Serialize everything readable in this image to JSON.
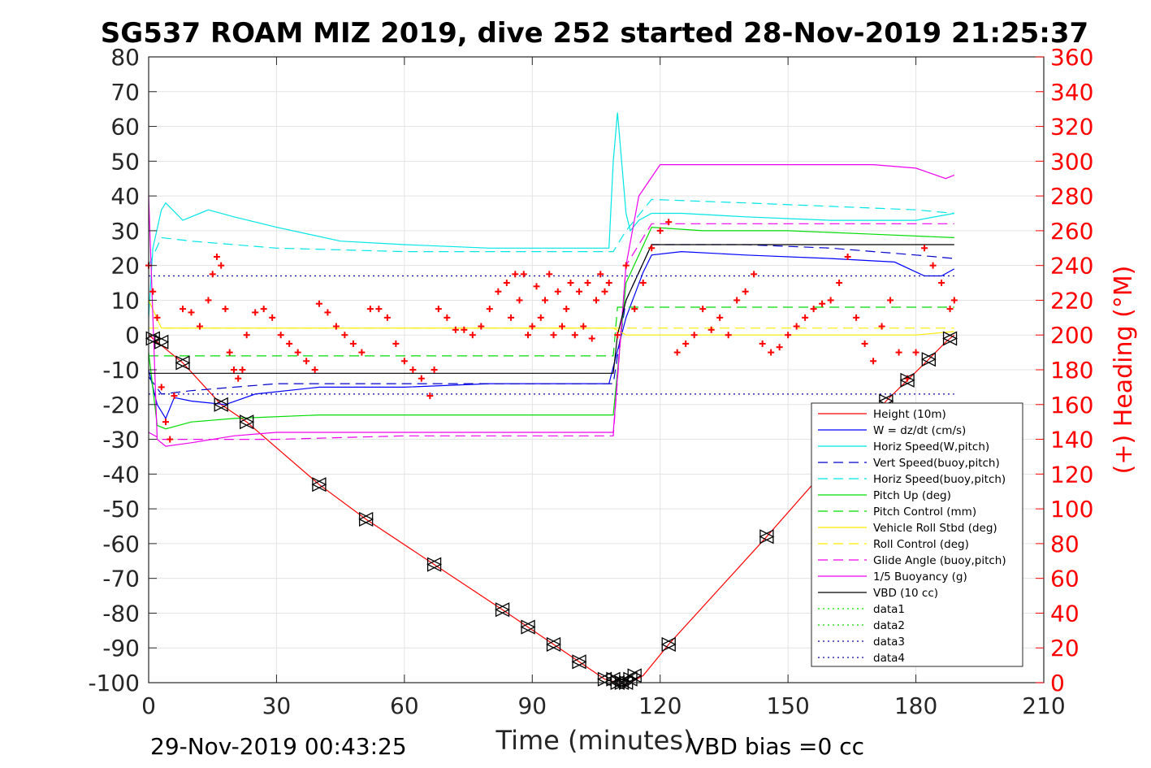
{
  "chart_data": {
    "type": "line",
    "title": "SG537 ROAM MIZ 2019, dive 252 started 28-Nov-2019 21:25:37",
    "xlabel": "Time (minutes)",
    "ylabel": "",
    "y2label": "(+) Heading (°M)",
    "xlim": [
      0,
      210
    ],
    "ylim": [
      -100,
      80
    ],
    "y2lim": [
      0,
      360
    ],
    "xticks": [
      "0",
      "30",
      "60",
      "90",
      "120",
      "150",
      "180",
      "210"
    ],
    "yticks": [
      "80",
      "70",
      "60",
      "50",
      "40",
      "30",
      "20",
      "10",
      "0",
      "-10",
      "-20",
      "-30",
      "-40",
      "-50",
      "-60",
      "-70",
      "-80",
      "-90",
      "-100"
    ],
    "y2ticks": [
      "360",
      "340",
      "320",
      "300",
      "280",
      "260",
      "240",
      "220",
      "200",
      "180",
      "160",
      "140",
      "120",
      "100",
      "80",
      "60",
      "40",
      "20",
      "0"
    ],
    "grid": true,
    "legend_position": "lower-right",
    "footer_left": "29-Nov-2019 00:43:25",
    "footer_right": "VBD bias =0 cc",
    "series": [
      {
        "name": "Height (10m)",
        "color": "#ff0000",
        "style": "solid",
        "x": [
          0,
          1,
          2,
          3,
          8,
          17,
          23,
          40,
          51,
          67,
          83,
          89,
          95,
          101,
          107,
          110,
          113,
          116,
          122,
          145,
          173,
          178,
          183,
          187,
          189
        ],
        "y": [
          0,
          -1,
          -2,
          -3,
          -8,
          -20,
          -25,
          -43,
          -53,
          -66,
          -79,
          -84,
          -89,
          -94,
          -99,
          -100,
          -100,
          -98,
          -89,
          -58,
          -19,
          -13,
          -7,
          -2,
          0
        ]
      },
      {
        "name": "W = dz/dt (cm/s)",
        "color": "#0000ff",
        "style": "solid",
        "x": [
          0,
          2,
          4,
          6,
          10,
          18,
          25,
          40,
          60,
          80,
          100,
          108,
          112,
          116,
          118,
          125,
          140,
          160,
          175,
          182,
          186,
          189
        ],
        "y": [
          -10,
          -20,
          -24,
          -18,
          -19,
          -20,
          -17,
          -15,
          -15,
          -14,
          -14,
          -14,
          5,
          18,
          23,
          24,
          23,
          22,
          21,
          17,
          17,
          19
        ]
      },
      {
        "name": "Horiz Speed(W,pitch)",
        "color": "#00e5e5",
        "style": "solid",
        "x": [
          0,
          1,
          3,
          4,
          8,
          14,
          20,
          30,
          45,
          60,
          80,
          100,
          108,
          109,
          110,
          112,
          113,
          115,
          118,
          125,
          140,
          160,
          180,
          189
        ],
        "y": [
          5,
          25,
          36,
          38,
          33,
          36,
          34,
          31,
          27,
          26,
          25,
          25,
          25,
          50,
          64,
          35,
          30,
          33,
          35,
          35,
          34,
          33,
          33,
          35
        ]
      },
      {
        "name": "Vert Speed(buoy,pitch)",
        "color": "#0000cc",
        "style": "dashed",
        "x": [
          0,
          3,
          10,
          30,
          60,
          90,
          109,
          112,
          118,
          140,
          160,
          180,
          189
        ],
        "y": [
          -12,
          -17,
          -16,
          -14,
          -14,
          -14,
          -14,
          10,
          26,
          26,
          25,
          23,
          22
        ]
      },
      {
        "name": "Horiz Speed(buoy,pitch)",
        "color": "#00e5e5",
        "style": "dashed",
        "x": [
          0,
          3,
          10,
          30,
          60,
          90,
          109,
          112,
          118,
          140,
          160,
          180,
          189
        ],
        "y": [
          20,
          28,
          27,
          25,
          24,
          24,
          24,
          30,
          39,
          38,
          37,
          36,
          35
        ]
      },
      {
        "name": "Pitch Up (deg)",
        "color": "#00dd00",
        "style": "solid",
        "x": [
          0,
          2,
          4,
          10,
          20,
          40,
          60,
          80,
          100,
          109,
          112,
          118,
          130,
          150,
          170,
          189
        ],
        "y": [
          -5,
          -26,
          -27,
          -25,
          -24,
          -23,
          -23,
          -23,
          -23,
          -23,
          15,
          31,
          30,
          30,
          29,
          28
        ]
      },
      {
        "name": "Pitch Control (mm)",
        "color": "#00dd00",
        "style": "dashed",
        "x": [
          0,
          3,
          30,
          60,
          109,
          110,
          189
        ],
        "y": [
          -6,
          -6,
          -6,
          -6,
          -6,
          8,
          8
        ]
      },
      {
        "name": "Vehicle Roll Stbd (deg)",
        "color": "#ffee00",
        "style": "solid",
        "x": [
          0,
          3,
          20,
          40,
          60,
          80,
          100,
          109,
          112,
          120,
          140,
          160,
          180,
          189
        ],
        "y": [
          10,
          2,
          2,
          2,
          2,
          2,
          2,
          2,
          0,
          0,
          0,
          0,
          0,
          1
        ]
      },
      {
        "name": "Roll Control (deg)",
        "color": "#ffee00",
        "style": "dashed",
        "x": [
          0,
          189
        ],
        "y": [
          2,
          2
        ]
      },
      {
        "name": "Glide Angle (buoy,pitch)",
        "color": "#ee00ee",
        "style": "dashed",
        "x": [
          0,
          3,
          10,
          30,
          60,
          90,
          109,
          112,
          118,
          150,
          180,
          189
        ],
        "y": [
          -28,
          -30,
          -30,
          -30,
          -29,
          -29,
          -29,
          20,
          32,
          32,
          32,
          32
        ]
      },
      {
        "name": "1/5 Buoyancy (g)",
        "color": "#ee00ee",
        "style": "solid",
        "x": [
          0,
          2,
          4,
          10,
          20,
          30,
          60,
          90,
          109,
          112,
          115,
          120,
          150,
          170,
          180,
          187,
          189
        ],
        "y": [
          40,
          -30,
          -32,
          -31,
          -29,
          -28,
          -28,
          -28,
          -28,
          20,
          40,
          49,
          49,
          49,
          48,
          45,
          46
        ]
      },
      {
        "name": "VBD (10 cc)",
        "color": "#000000",
        "style": "solid",
        "x": [
          0,
          4,
          109,
          110,
          112,
          118,
          189
        ],
        "y": [
          -11,
          -11,
          -11,
          0,
          10,
          26,
          26
        ]
      },
      {
        "name": "data1",
        "color": "#00dd00",
        "style": "dotted",
        "x": [],
        "y": []
      },
      {
        "name": "data2",
        "color": "#00dd00",
        "style": "dotted",
        "x": [],
        "y": []
      },
      {
        "name": "data3",
        "color": "#0000aa",
        "style": "dotted",
        "x": [
          0,
          189
        ],
        "y": [
          17,
          17
        ]
      },
      {
        "name": "data4",
        "color": "#0000aa",
        "style": "dotted",
        "x": [
          0,
          189
        ],
        "y": [
          -17,
          -17
        ]
      }
    ],
    "heading": {
      "color": "#ff0000",
      "marker": "+",
      "x": [
        0,
        1,
        2,
        3,
        4,
        5,
        6,
        8,
        10,
        12,
        14,
        15,
        16,
        17,
        18,
        19,
        20,
        21,
        22,
        23,
        25,
        27,
        29,
        31,
        33,
        35,
        37,
        39,
        40,
        42,
        44,
        46,
        48,
        50,
        52,
        54,
        56,
        58,
        60,
        62,
        64,
        66,
        67,
        68,
        70,
        72,
        74,
        76,
        78,
        80,
        82,
        84,
        85,
        86,
        87,
        88,
        89,
        90,
        91,
        92,
        93,
        94,
        95,
        96,
        97,
        98,
        99,
        100,
        101,
        102,
        103,
        104,
        105,
        106,
        107,
        108,
        110,
        112,
        114,
        116,
        118,
        120,
        122,
        124,
        126,
        128,
        130,
        132,
        134,
        136,
        138,
        140,
        142,
        144,
        146,
        148,
        150,
        152,
        154,
        156,
        158,
        160,
        162,
        164,
        166,
        168,
        170,
        172,
        174,
        176,
        178,
        180,
        182,
        184,
        186,
        188,
        189
      ],
      "y": [
        240,
        225,
        210,
        170,
        150,
        140,
        165,
        215,
        213,
        205,
        220,
        235,
        245,
        240,
        215,
        190,
        180,
        175,
        180,
        200,
        213,
        215,
        210,
        200,
        195,
        190,
        185,
        180,
        218,
        213,
        205,
        200,
        195,
        190,
        215,
        215,
        210,
        195,
        185,
        180,
        175,
        165,
        180,
        215,
        210,
        203,
        203,
        200,
        205,
        215,
        225,
        230,
        210,
        235,
        220,
        235,
        200,
        205,
        228,
        210,
        220,
        235,
        200,
        225,
        205,
        215,
        230,
        200,
        225,
        205,
        230,
        198,
        220,
        235,
        225,
        230,
        200,
        240,
        215,
        230,
        250,
        260,
        265,
        190,
        195,
        200,
        215,
        203,
        210,
        200,
        220,
        225,
        235,
        195,
        190,
        193,
        200,
        205,
        210,
        215,
        218,
        220,
        230,
        245,
        210,
        195,
        185,
        205,
        220,
        190,
        175,
        190,
        250,
        240,
        230,
        215,
        220
      ]
    },
    "markers": {
      "description": "black triangle markers along Height trace",
      "x": [
        1,
        3,
        8,
        17,
        23,
        40,
        51,
        67,
        83,
        89,
        95,
        101,
        107,
        109,
        110,
        111,
        112,
        113,
        114,
        122,
        145,
        173,
        178,
        183,
        188
      ],
      "y": [
        -1,
        -2,
        -8,
        -20,
        -25,
        -43,
        -53,
        -66,
        -79,
        -84,
        -89,
        -94,
        -99,
        -99,
        -100,
        -100,
        -100,
        -99,
        -98,
        -89,
        -58,
        -19,
        -13,
        -7,
        -1
      ]
    }
  }
}
